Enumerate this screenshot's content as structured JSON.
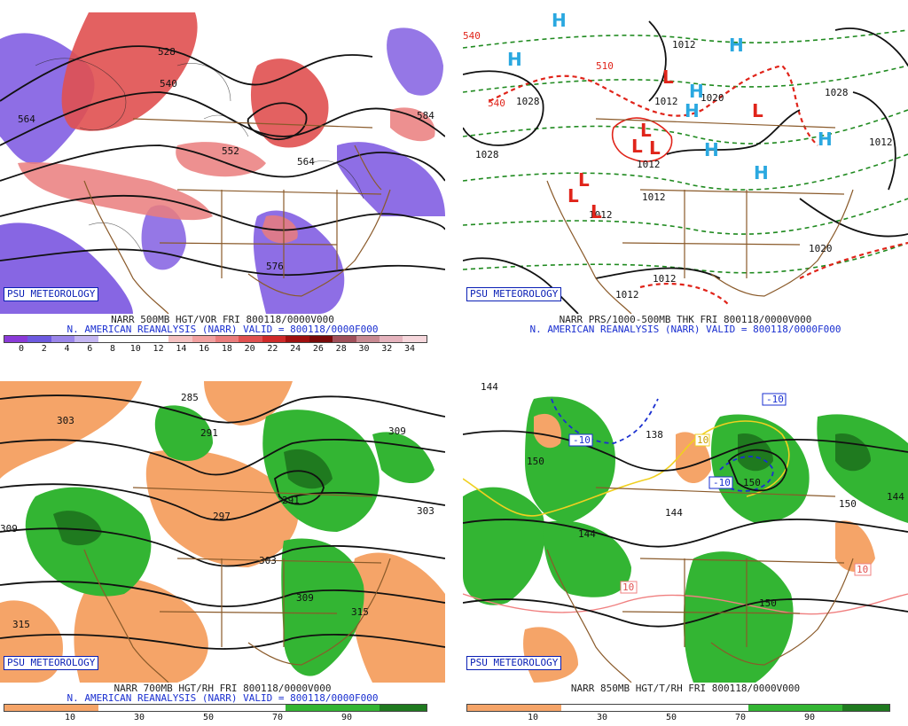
{
  "panels": [
    {
      "id": "500mb",
      "badge": "PSU METEOROLOGY",
      "caption_line1": "NARR 500MB HGT/VOR FRI 800118/0000V000",
      "caption_line2": "N. AMERICAN REANALYSIS (NARR) VALID = 800118/0000F000",
      "scale_ticks": [
        "0",
        "2",
        "4",
        "6",
        "8",
        "10",
        "12",
        "14",
        "16",
        "18",
        "20",
        "22",
        "24",
        "26",
        "28",
        "30",
        "32",
        "34"
      ],
      "scale_colors": [
        "#8a3ad8",
        "#6d5ae0",
        "#9a85ea",
        "#c4b6f2",
        "#ffffff",
        "#ffffff",
        "#ffffff",
        "#f5c2c2",
        "#f1a0a0",
        "#ea7c7c",
        "#e05050",
        "#cf2a2a",
        "#a01010",
        "#7a0a0a",
        "#a0505a",
        "#c88a92",
        "#e5b3bd",
        "#f6d7dc"
      ],
      "contour_labels": [
        "528",
        "540",
        "552",
        "564",
        "576",
        "564",
        "584"
      ]
    },
    {
      "id": "thickness",
      "badge": "PSU METEOROLOGY",
      "caption_line1": "NARR PRS/1000-500MB THK FRI 800118/0000V000",
      "caption_line2": "N. AMERICAN REANALYSIS (NARR) VALID = 800118/0000F000",
      "pressure_labels": [
        "1028",
        "1012",
        "1012",
        "1020",
        "1012",
        "1012",
        "1012",
        "1012",
        "1020",
        "1028",
        "1012",
        "1012",
        "1028"
      ],
      "thickness_labels": [
        "510",
        "540",
        "540"
      ],
      "high_symbol": "H",
      "low_symbol": "L"
    },
    {
      "id": "700mb",
      "badge": "PSU METEOROLOGY",
      "caption_line1": "NARR 700MB HGT/RH FRI 800118/0000V000",
      "caption_line2": "N. AMERICAN REANALYSIS (NARR) VALID = 800118/0000F000",
      "scale_ticks": [
        "10",
        "30",
        "50",
        "70",
        "90"
      ],
      "contour_labels": [
        "303",
        "285",
        "291",
        "297",
        "291",
        "303",
        "309",
        "303",
        "309",
        "315",
        "309",
        "315"
      ]
    },
    {
      "id": "850mb",
      "badge": "PSU METEOROLOGY",
      "caption_line1": "NARR 850MB HGT/T/RH FRI 800118/0000V000",
      "scale_ticks": [
        "10",
        "30",
        "50",
        "70",
        "90"
      ],
      "contour_labels": [
        "144",
        "150",
        "138",
        "144",
        "144",
        "150",
        "150",
        "144",
        "150"
      ],
      "temp_labels": [
        "-10",
        "-10",
        "-10",
        "10",
        "10",
        "10"
      ]
    }
  ],
  "colors": {
    "coast": "#8a5a2a",
    "contour": "#111111",
    "high": "#2aa8e0",
    "low": "#e0241a",
    "thk_green": "#1f8a1f",
    "thk_red": "#e0241a",
    "rh_dry": "#f5a468",
    "rh_moist": "#33b533",
    "rh_wet": "#1f7a1f",
    "vor_pos": "#e05050",
    "vor_neg": "#7a55e0"
  }
}
